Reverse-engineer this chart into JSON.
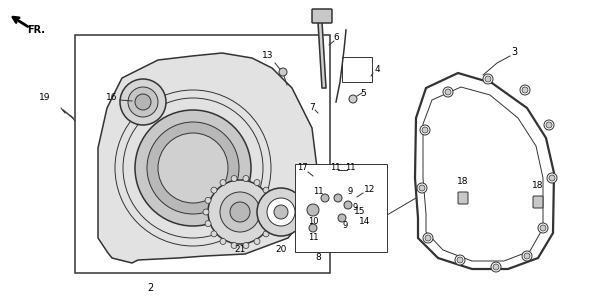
{
  "title": "",
  "bg_color": "#ffffff",
  "line_color": "#333333",
  "label_color": "#000000",
  "arrow_label": "FR.",
  "parts": {
    "part2_label": "2",
    "part3_label": "3",
    "part4_label": "4",
    "part5_label": "5",
    "part6_label": "6",
    "part7_label": "7",
    "part8_label": "8",
    "part9_label": "9",
    "part10_label": "10",
    "part11_label": "11",
    "part12_label": "12",
    "part13_label": "13",
    "part14_label": "14",
    "part15_label": "15",
    "part16_label": "16",
    "part17_label": "17",
    "part18_label": "18",
    "part19_label": "19",
    "part20_label": "20",
    "part21_label": "21"
  },
  "figsize": [
    5.9,
    3.01
  ],
  "dpi": 100
}
